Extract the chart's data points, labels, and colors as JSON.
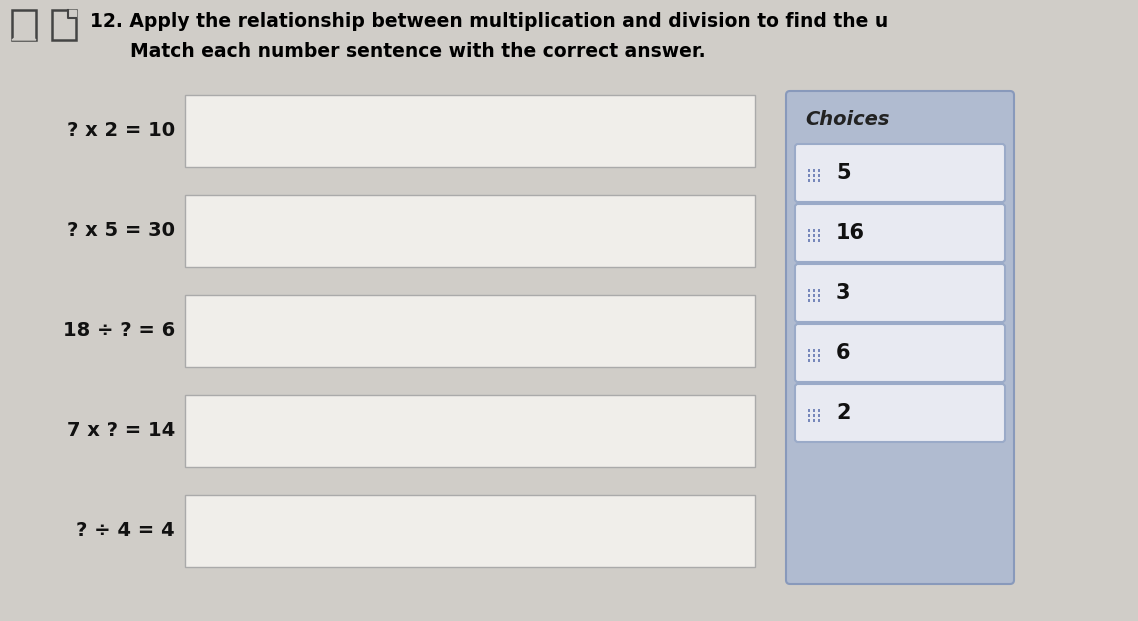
{
  "title_line1": "12. Apply the relationship between multiplication and division to find the u",
  "title_line2": "Match each number sentence with the correct answer.",
  "equations": [
    "? x 2 = 10",
    "? x 5 = 30",
    "18 ÷ ? = 6",
    "7 x ? = 14",
    "? ÷ 4 = 4"
  ],
  "choices_label": "Choices",
  "choices": [
    "5",
    "16",
    "3",
    "6",
    "2"
  ],
  "page_bg": "#d0cdc8",
  "answer_box_color": "#f0eeea",
  "answer_box_border": "#aaaaaa",
  "choices_panel_color": "#b0bbd0",
  "choices_box_color": "#e8eaf2",
  "choices_box_border": "#9aaac8",
  "title_color": "#000000",
  "eq_color": "#111111",
  "choices_label_color": "#222222",
  "dot_color": "#7788bb",
  "icon_color": "#444444"
}
